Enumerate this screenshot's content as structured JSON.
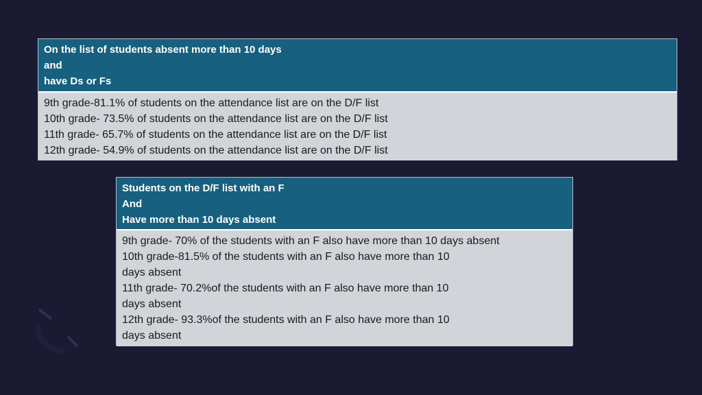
{
  "panel_attendance": {
    "header_lines": [
      "On the list of students absent more than 10 days",
      "and",
      "have Ds or Fs"
    ],
    "body_lines": [
      "9th grade-81.1% of students on the attendance list are on the D/F list",
      "10th grade- 73.5% of students on the attendance list are on the D/F list",
      "11th grade- 65.7% of students on the attendance list are on the D/F list",
      "12th grade- 54.9% of students on the attendance list are on the D/F list"
    ]
  },
  "panel_df": {
    "header_lines": [
      "Students on the D/F list with an F",
      "And",
      "Have more than 10 days absent"
    ],
    "body_lines": [
      "9th grade- 70% of the students with an F also have more than 10 days absent",
      "10th grade-81.5% of the students with an F also have more than 10",
      "days absent",
      "11th grade- 70.2%of the students with an F also have more than 10",
      "days absent",
      "12th grade- 93.3%of the students with an F also have more than 10",
      "days absent"
    ]
  },
  "colors": {
    "background": "#1b1a33",
    "header": "#17607f",
    "body": "#d1d4d9"
  }
}
